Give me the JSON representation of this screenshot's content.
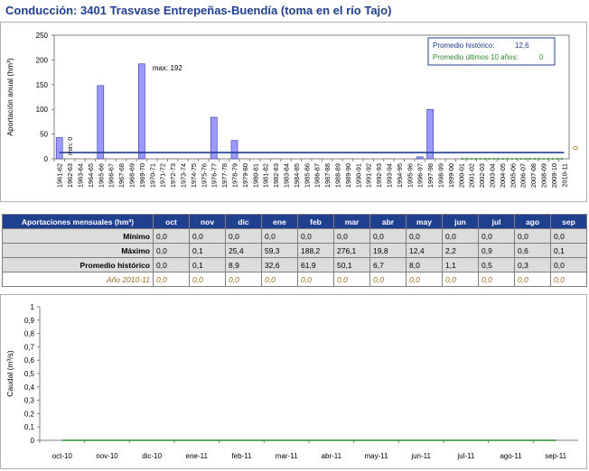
{
  "title": "Conducción:  3401 Trasvase Entrepeñas-Buendía (toma en el río Tajo)",
  "chart_data": [
    {
      "type": "bar",
      "ylabel": "Aportación anual (hm³)",
      "ylim": [
        0,
        250
      ],
      "yticks": [
        "0",
        "50",
        "100",
        "150",
        "200",
        "250"
      ],
      "categories": [
        "1961-62",
        "1962-63",
        "1963-64",
        "1964-65",
        "1965-66",
        "1966-67",
        "1967-68",
        "1968-69",
        "1969-70",
        "1970-71",
        "1971-72",
        "1972-73",
        "1973-74",
        "1974-75",
        "1975-76",
        "1976-77",
        "1977-78",
        "1978-79",
        "1979-80",
        "1980-81",
        "1981-82",
        "1982-83",
        "1983-84",
        "1984-85",
        "1985-86",
        "1986-87",
        "1987-88",
        "1988-89",
        "1989-90",
        "1990-91",
        "1991-92",
        "1992-93",
        "1993-94",
        "1994-95",
        "1995-96",
        "1996-97",
        "1997-98",
        "1998-99",
        "1999-00",
        "2000-01",
        "2001-02",
        "2002-03",
        "2003-04",
        "2004-05",
        "2005-06",
        "2006-07",
        "2007-08",
        "2008-09",
        "2009-10",
        "2010-11"
      ],
      "values": [
        43,
        0,
        0,
        0,
        148,
        0,
        0,
        0,
        192,
        0,
        0,
        0,
        0,
        0,
        0,
        84,
        0,
        37,
        0,
        0,
        0,
        0,
        0,
        0,
        0,
        0,
        0,
        0,
        0,
        0,
        0,
        0,
        0,
        0,
        0,
        4,
        100,
        0,
        0,
        0,
        0,
        0,
        0,
        0,
        0,
        0,
        0,
        0,
        0,
        0
      ],
      "promedio_historico": 12.6,
      "promedio_10": 0,
      "legend": {
        "hist_label": "Promedio histórico:",
        "hist_value": "12,6",
        "ten_label": "Promedio últimos 10 años:",
        "ten_value": "0",
        "placement": "top-right"
      },
      "annotations": {
        "max_label": "max: 192",
        "min_label": "min: 0",
        "last_value_label": "0"
      },
      "colors": {
        "bar": "#9999ff",
        "bar_stroke": "#333399",
        "hist_line": "#1f3f8f",
        "ten_line": "#2e8b2e"
      }
    },
    {
      "type": "line",
      "ylabel": "Caudal (m³/s)",
      "ylim": [
        0,
        1
      ],
      "yticks": [
        "0",
        "0,1",
        "0,2",
        "0,3",
        "0,4",
        "0,5",
        "0,6",
        "0,7",
        "0,8",
        "0,9",
        "1"
      ],
      "categories": [
        "oct-10",
        "nov-10",
        "dic-10",
        "ene-11",
        "feb-11",
        "mar-11",
        "abr-11",
        "may-11",
        "jun-11",
        "jul-11",
        "ago-11",
        "sep-11"
      ],
      "values": [
        0,
        0,
        0,
        0,
        0,
        0,
        0,
        0,
        0,
        0,
        0,
        0
      ],
      "colors": {
        "line": "#2e8b2e"
      }
    }
  ],
  "table": {
    "header": "Aportaciones mensuales (hm³)",
    "months": [
      "oct",
      "nov",
      "dic",
      "ene",
      "feb",
      "mar",
      "abr",
      "may",
      "jun",
      "jul",
      "ago",
      "sep"
    ],
    "rows": [
      {
        "label": "Mínimo",
        "cls": "r-min",
        "values": [
          "0,0",
          "0,0",
          "0,0",
          "0,0",
          "0,0",
          "0,0",
          "0,0",
          "0,0",
          "0,0",
          "0,0",
          "0,0",
          "0,0"
        ]
      },
      {
        "label": "Máximo",
        "cls": "r-max",
        "values": [
          "0,0",
          "0,1",
          "25,4",
          "59,3",
          "188,2",
          "276,1",
          "19,8",
          "12,4",
          "2,2",
          "0,9",
          "0,6",
          "0,1"
        ]
      },
      {
        "label": "Promedio histórico",
        "cls": "r-prom",
        "values": [
          "0,0",
          "0,1",
          "8,9",
          "32,6",
          "61,9",
          "50,1",
          "6,7",
          "8,0",
          "1,1",
          "0,5",
          "0,3",
          "0,0"
        ]
      },
      {
        "label": "Año 2010-11",
        "cls": "r-year",
        "values": [
          "0,0",
          "0,0",
          "0,0",
          "0,0",
          "0,0",
          "0,0",
          "0,0",
          "0,0",
          "0,0",
          "0,0",
          "0,0",
          "0,0"
        ]
      }
    ]
  }
}
